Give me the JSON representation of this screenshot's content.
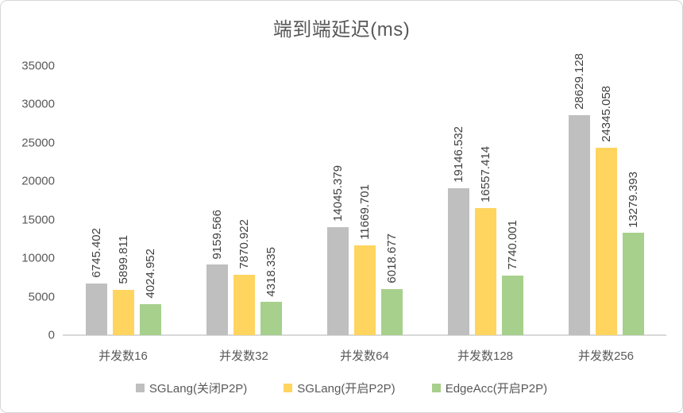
{
  "title": "端到端延迟(ms)",
  "colors": {
    "series_gray": "#bfbfbf",
    "series_yellow": "#ffd45f",
    "series_green": "#a6d08c",
    "axis_text": "#595959",
    "value_label_text": "#404040",
    "axis_line": "#d9d9d9",
    "frame_border": "#d6d6d6",
    "background": "#ffffff"
  },
  "chart_data": {
    "type": "bar",
    "title": "端到端延迟(ms)",
    "categories": [
      "并发数16",
      "并发数32",
      "并发数64",
      "并发数128",
      "并发数256"
    ],
    "series": [
      {
        "name": "SGLang(关闭P2P)",
        "color": "#bfbfbf",
        "values": [
          6745.402,
          9159.566,
          14045.379,
          19146.532,
          28629.128
        ],
        "data_labels": [
          "6745.402",
          "9159.566",
          "14045.379",
          "19146.532",
          "28629.128"
        ]
      },
      {
        "name": "SGLang(开启P2P)",
        "color": "#ffd45f",
        "values": [
          5899.811,
          7870.922,
          11669.701,
          16557.414,
          24345.058
        ],
        "data_labels": [
          "5899.811",
          "7870.922",
          "11669.701",
          "16557.414",
          "24345.058"
        ]
      },
      {
        "name": "EdgeAcc(开启P2P)",
        "color": "#a6d08c",
        "values": [
          4024.952,
          4318.335,
          6018.677,
          7740.001,
          13279.393
        ],
        "data_labels": [
          "4024.952",
          "4318.335",
          "6018.677",
          "7740.001",
          "13279.393"
        ]
      }
    ],
    "ylim": [
      0,
      35000
    ],
    "yticks": [
      0,
      5000,
      10000,
      15000,
      20000,
      25000,
      30000,
      35000
    ],
    "xlabel": "",
    "ylabel": "",
    "grid": false,
    "legend_position": "bottom",
    "data_label_orientation": "vertical-rotated"
  }
}
